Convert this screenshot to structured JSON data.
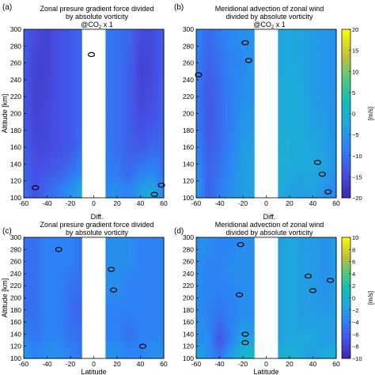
{
  "chart_data": [
    {
      "type": "heatmap",
      "panel_label": "(a)",
      "title_lines": [
        "Zonal presure gradient force divided",
        "by absolute vorticity"
      ],
      "subtitle_text": "@CO",
      "subtitle_sub": "2",
      "subtitle_tail": " x 1",
      "xlabel": "",
      "ylabel": "Altitude [km]",
      "xlim": [
        -60,
        60
      ],
      "ylim": [
        100,
        300
      ],
      "x_ticks": [
        "-60",
        "-40",
        "-20",
        "0",
        "20",
        "40",
        "60"
      ],
      "y_ticks": [
        "100",
        "120",
        "140",
        "160",
        "180",
        "200",
        "220",
        "240",
        "260",
        "280",
        "300"
      ],
      "masked_band": [
        -10,
        10
      ],
      "field_levels": [
        {
          "alt": 110,
          "values": [
            -1000,
            -1400,
            -1100,
            -900,
            -600,
            -200,
            -700,
            -700,
            -600,
            -800,
            -400,
            -200,
            -800
          ]
        },
        {
          "alt": 130,
          "values": [
            -1100,
            -1400,
            -1300,
            -1200,
            -1000,
            -700,
            -900,
            -800,
            -900,
            -1100,
            -800,
            -700,
            -1000
          ]
        },
        {
          "alt": 160,
          "values": [
            -1200,
            -1500,
            -1500,
            -1400,
            -1300,
            -1000,
            -1000,
            -900,
            -1000,
            -1200,
            -1300,
            -1100,
            -1100
          ]
        },
        {
          "alt": 200,
          "values": [
            -1300,
            -1600,
            -1500,
            -1400,
            -1300,
            -1100,
            -1000,
            -900,
            -1000,
            -1200,
            -1500,
            -1400,
            -1200
          ]
        },
        {
          "alt": 250,
          "values": [
            -1300,
            -1600,
            -1600,
            -1400,
            -1300,
            -1100,
            -1000,
            -900,
            -1000,
            -1200,
            -1600,
            -1500,
            -1200
          ]
        },
        {
          "alt": 290,
          "values": [
            -1200,
            -1500,
            -1600,
            -1400,
            -1300,
            -1100,
            -1000,
            -900,
            -1000,
            -1100,
            -1500,
            -1500,
            -1200
          ]
        }
      ],
      "zero_contours": [
        [
          -2,
          270
        ],
        [
          -50,
          112
        ],
        [
          52,
          104
        ],
        [
          58,
          115
        ]
      ],
      "colorbar": null
    },
    {
      "type": "heatmap",
      "panel_label": "(b)",
      "title_lines": [
        "Meridional advection of zonal wind",
        "divided by absolute vorticity"
      ],
      "subtitle_text": "@CO",
      "subtitle_sub": "2",
      "subtitle_tail": " x 1",
      "xlabel": "",
      "ylabel": "",
      "xlim": [
        -60,
        60
      ],
      "ylim": [
        100,
        300
      ],
      "x_ticks": [
        "-60",
        "-40",
        "-20",
        "0",
        "20",
        "40",
        "60"
      ],
      "y_ticks": [
        "100",
        "120",
        "140",
        "160",
        "180",
        "200",
        "220",
        "240",
        "260",
        "280",
        "300"
      ],
      "masked_band": [
        -10,
        10
      ],
      "field_levels": [
        {
          "alt": 110,
          "values": [
            -400,
            -1200,
            -900,
            -600,
            -400,
            -300,
            -500,
            -200,
            -300,
            -400,
            -300,
            -500,
            -700
          ]
        },
        {
          "alt": 140,
          "values": [
            -600,
            -1200,
            -1000,
            -700,
            -400,
            -300,
            -300,
            -100,
            -100,
            -200,
            -200,
            -300,
            -600
          ]
        },
        {
          "alt": 180,
          "values": [
            -800,
            -1300,
            -1100,
            -800,
            -500,
            -400,
            -300,
            -200,
            -100,
            -200,
            -300,
            -400,
            -600
          ]
        },
        {
          "alt": 220,
          "values": [
            -900,
            -1300,
            -1100,
            -800,
            -600,
            -500,
            -400,
            -200,
            -100,
            -200,
            -400,
            -500,
            -600
          ]
        },
        {
          "alt": 260,
          "values": [
            -800,
            -1200,
            -1000,
            -800,
            -700,
            -500,
            -400,
            -300,
            -200,
            -300,
            -400,
            -500,
            -600
          ]
        },
        {
          "alt": 290,
          "values": [
            -700,
            -1100,
            -900,
            -700,
            -600,
            -500,
            -400,
            -300,
            -200,
            -300,
            -400,
            -500,
            -600
          ]
        }
      ],
      "zero_contours": [
        [
          -58,
          246
        ],
        [
          -18,
          284
        ],
        [
          -15,
          263
        ],
        [
          44,
          142
        ],
        [
          48,
          128
        ],
        [
          53,
          107
        ]
      ],
      "colorbar": {
        "label": "[m/s]",
        "min": -2000,
        "max": 2000,
        "ticks": [
          "20",
          "15",
          "10",
          "5",
          "0",
          "−5",
          "−10",
          "−15",
          "−20"
        ]
      }
    },
    {
      "type": "heatmap",
      "panel_label": "(c)",
      "title_lines": [
        "Diff.",
        "Zonal presure gradient force divided",
        "by absolute vorticity"
      ],
      "xlabel": "Latitude",
      "ylabel": "Altitude [km]",
      "xlim": [
        -60,
        60
      ],
      "ylim": [
        100,
        300
      ],
      "x_ticks": [
        "-60",
        "-40",
        "-20",
        "0",
        "20",
        "40",
        "60"
      ],
      "y_ticks": [
        "100",
        "120",
        "140",
        "160",
        "180",
        "200",
        "220",
        "240",
        "260",
        "280",
        "300"
      ],
      "masked_band": [
        -10,
        10
      ],
      "field_levels": [
        {
          "alt": 110,
          "values": [
            -200,
            -400,
            -300,
            -300,
            -400,
            -500,
            -400,
            -300,
            -300,
            -400,
            -400,
            -300,
            -300
          ]
        },
        {
          "alt": 140,
          "values": [
            -400,
            -500,
            -400,
            -400,
            -500,
            -500,
            -400,
            -400,
            -400,
            -500,
            -400,
            -400,
            -400
          ]
        },
        {
          "alt": 180,
          "values": [
            -500,
            -500,
            -400,
            -400,
            -500,
            -600,
            -400,
            -400,
            -400,
            -400,
            -400,
            -400,
            -400
          ]
        },
        {
          "alt": 220,
          "values": [
            -500,
            -500,
            -400,
            -400,
            -500,
            -500,
            -400,
            -300,
            -300,
            -400,
            -400,
            -400,
            -400
          ]
        },
        {
          "alt": 260,
          "values": [
            -500,
            -500,
            -400,
            -400,
            -400,
            -500,
            -400,
            -300,
            -300,
            -300,
            -400,
            -400,
            -400
          ]
        },
        {
          "alt": 290,
          "values": [
            -500,
            -500,
            -400,
            -400,
            -400,
            -500,
            -400,
            -300,
            -300,
            -300,
            -400,
            -400,
            -400
          ]
        }
      ],
      "zero_contours": [
        [
          -30,
          280
        ],
        [
          15,
          247
        ],
        [
          17,
          213
        ],
        [
          42,
          120
        ]
      ],
      "colorbar": null
    },
    {
      "type": "heatmap",
      "panel_label": "(d)",
      "title_lines": [
        "Diff.",
        "Meridional advection of zonal wind",
        "divided by absolute vorticity"
      ],
      "xlabel": "Latitude",
      "ylabel": "",
      "xlim": [
        -60,
        60
      ],
      "ylim": [
        100,
        300
      ],
      "x_ticks": [
        "-60",
        "-40",
        "-20",
        "0",
        "20",
        "40",
        "60"
      ],
      "y_ticks": [
        "100",
        "120",
        "140",
        "160",
        "180",
        "200",
        "220",
        "240",
        "260",
        "280",
        "300"
      ],
      "masked_band": [
        -10,
        10
      ],
      "field_levels": [
        {
          "alt": 108,
          "values": [
            -100,
            -300,
            -500,
            -200,
            0,
            100,
            100,
            -100,
            0,
            -100,
            -200,
            -100,
            0
          ]
        },
        {
          "alt": 130,
          "values": [
            -300,
            -300,
            -700,
            -400,
            -100,
            -200,
            -100,
            -200,
            -100,
            -100,
            -100,
            -200,
            -200
          ]
        },
        {
          "alt": 170,
          "values": [
            -300,
            -400,
            -500,
            -400,
            -300,
            -300,
            -300,
            -200,
            -100,
            -200,
            -200,
            -200,
            -200
          ]
        },
        {
          "alt": 210,
          "values": [
            -300,
            -400,
            -400,
            -400,
            -300,
            -300,
            -300,
            -200,
            -100,
            -200,
            -200,
            -300,
            -200
          ]
        },
        {
          "alt": 250,
          "values": [
            -300,
            -400,
            -400,
            -300,
            -300,
            -300,
            -300,
            -200,
            -100,
            -200,
            -200,
            -300,
            -200
          ]
        },
        {
          "alt": 290,
          "values": [
            -300,
            -300,
            -400,
            -400,
            -300,
            -300,
            -300,
            -200,
            -100,
            -200,
            -200,
            -300,
            -200
          ]
        }
      ],
      "zero_contours": [
        [
          -22,
          288
        ],
        [
          -23,
          205
        ],
        [
          -18,
          140
        ],
        [
          -18,
          126
        ],
        [
          36,
          236
        ],
        [
          55,
          229
        ],
        [
          40,
          212
        ]
      ],
      "colorbar": {
        "label": "[m/s]",
        "min": -1000,
        "max": 1000,
        "ticks": [
          "10",
          "8",
          "6",
          "4",
          "2",
          "0",
          "−2",
          "−4",
          "−6",
          "−8",
          "−10"
        ]
      }
    }
  ]
}
